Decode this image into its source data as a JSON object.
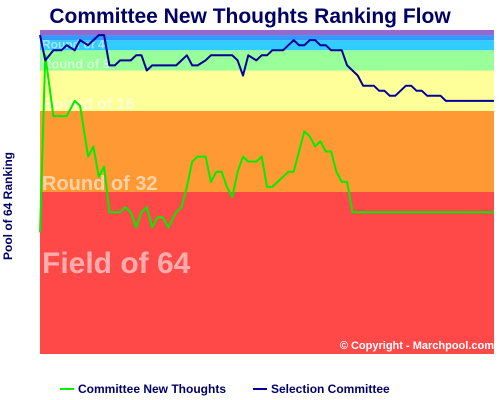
{
  "chart_data": {
    "type": "line",
    "title": "Committee New Thoughts Ranking Flow",
    "ylabel": "Pool of 64 Ranking",
    "xlabel": "",
    "ylim": [
      0,
      64
    ],
    "grid": false,
    "legend_position": "bottom",
    "copyright": "© Copyright - Marchpool.com",
    "bands": [
      {
        "label": "Field of 64",
        "from": 0,
        "to": 32,
        "color": "#ff4848"
      },
      {
        "label": "Round of 32",
        "from": 32,
        "to": 48,
        "color": "#ff9933"
      },
      {
        "label": "Round of 16",
        "from": 48,
        "to": 56,
        "color": "#ffff99"
      },
      {
        "label": "Round of 8",
        "from": 56,
        "to": 60,
        "color": "#99ff99"
      },
      {
        "label": "Round of 4",
        "from": 60,
        "to": 62,
        "color": "#33ccff"
      },
      {
        "label": "",
        "from": 62,
        "to": 63,
        "color": "#3399ff"
      },
      {
        "label": "",
        "from": 63,
        "to": 64,
        "color": "#9966cc"
      }
    ],
    "series": [
      {
        "name": "Committee New Thoughts",
        "color": "#00ee00",
        "x": [
          0,
          2,
          5,
          8,
          10,
          13,
          15,
          18,
          20,
          22,
          24,
          26,
          28,
          30,
          32,
          34,
          36,
          38,
          40,
          42,
          44,
          46,
          48,
          51,
          53,
          55,
          57,
          59,
          62,
          64,
          66,
          68,
          70,
          72,
          74,
          76,
          78,
          81,
          83,
          85,
          87,
          89,
          91,
          93,
          95,
          97,
          99,
          101,
          103,
          105,
          107,
          109,
          111,
          113,
          115,
          117,
          119,
          121,
          123,
          125,
          127,
          129,
          131,
          133,
          135,
          137,
          139,
          141,
          143,
          145,
          148,
          150,
          152,
          154,
          156,
          158,
          160,
          162,
          164,
          166,
          168,
          170
        ],
        "values": [
          24,
          59,
          47,
          47,
          47,
          50,
          49,
          39,
          41,
          35,
          37,
          28,
          28,
          28,
          29,
          28,
          25,
          28,
          29,
          25,
          27,
          27,
          25,
          28,
          29,
          33,
          38,
          39,
          39,
          34,
          36,
          36,
          33,
          31,
          36,
          39,
          38,
          38,
          39,
          33,
          33,
          34,
          35,
          36,
          36,
          40,
          44,
          43,
          41,
          42,
          40,
          40,
          36,
          34,
          34,
          28,
          28,
          28,
          28,
          28,
          28,
          28,
          28,
          28,
          28,
          28,
          28,
          28,
          28,
          28,
          28,
          28,
          28,
          28,
          28,
          28,
          28,
          28,
          28,
          28,
          28,
          28
        ],
        "note": "values approximated from image; x is sample index along the horizontal axis"
      },
      {
        "name": "Selection Committee",
        "color": "#000099",
        "x": [
          0,
          2,
          5,
          8,
          10,
          13,
          15,
          18,
          20,
          22,
          24,
          26,
          28,
          30,
          32,
          34,
          36,
          38,
          40,
          42,
          44,
          46,
          48,
          51,
          53,
          55,
          57,
          59,
          62,
          64,
          66,
          68,
          70,
          72,
          74,
          76,
          78,
          81,
          83,
          85,
          87,
          89,
          91,
          93,
          95,
          97,
          99,
          101,
          103,
          105,
          107,
          109,
          111,
          113,
          115,
          117,
          119,
          121,
          123,
          125,
          127,
          129,
          131,
          133,
          135,
          137,
          139,
          141,
          143,
          145,
          148,
          150,
          152,
          154,
          156,
          158,
          160,
          162,
          164,
          166,
          168,
          170
        ],
        "values": [
          63,
          58,
          60,
          60,
          61,
          60,
          62,
          61,
          62,
          63,
          63,
          57,
          57,
          58,
          58,
          58,
          59,
          59,
          56,
          57,
          57,
          57,
          57,
          57,
          58,
          59,
          57,
          57,
          58,
          59,
          59,
          59,
          59,
          59,
          58,
          55,
          59,
          58,
          59,
          59,
          60,
          60,
          60,
          61,
          62,
          61,
          61,
          62,
          62,
          61,
          61,
          60,
          60,
          60,
          57,
          56,
          55,
          53,
          53,
          53,
          52,
          52,
          51,
          51,
          52,
          53,
          53,
          52,
          52,
          51,
          51,
          51,
          50,
          50,
          50,
          50,
          50,
          50,
          50,
          50,
          50,
          50
        ]
      }
    ]
  }
}
